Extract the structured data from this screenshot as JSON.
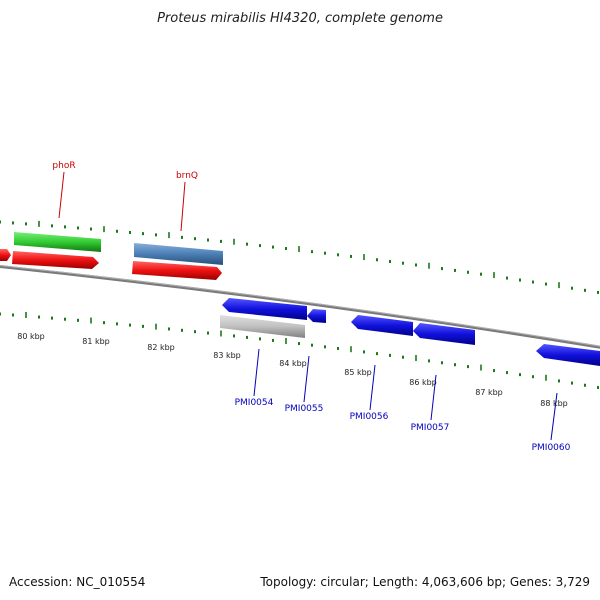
{
  "title": "Proteus mirabilis HI4320, complete genome",
  "footer": {
    "accession": "Accession: NC_010554",
    "summary": "Topology: circular; Length: 4,063,606 bp; Genes: 3,729"
  },
  "colors": {
    "background": "#ffffff",
    "tick": "#1a7a1a",
    "backbone": "#808080",
    "red": "#ee1111",
    "green": "#33cc33",
    "steelblue": "#4a7fb5",
    "blue": "#1111dd",
    "grey": "#c0c0c0",
    "label_red": "#cc0000",
    "label_blue": "#0000bb"
  },
  "scale": {
    "unit": "kbp",
    "ticks": [
      "80 kbp",
      "81 kbp",
      "82 kbp",
      "83 kbp",
      "84 kbp",
      "85 kbp",
      "86 kbp",
      "87 kbp",
      "88 kbp"
    ]
  },
  "top_labels": [
    {
      "name": "phoR",
      "color": "red"
    },
    {
      "name": "brnQ",
      "color": "red"
    }
  ],
  "bottom_labels": [
    {
      "name": "PMI0054"
    },
    {
      "name": "PMI0055"
    },
    {
      "name": "PMI0056"
    },
    {
      "name": "PMI0057"
    },
    {
      "name": "PMI0060"
    }
  ]
}
